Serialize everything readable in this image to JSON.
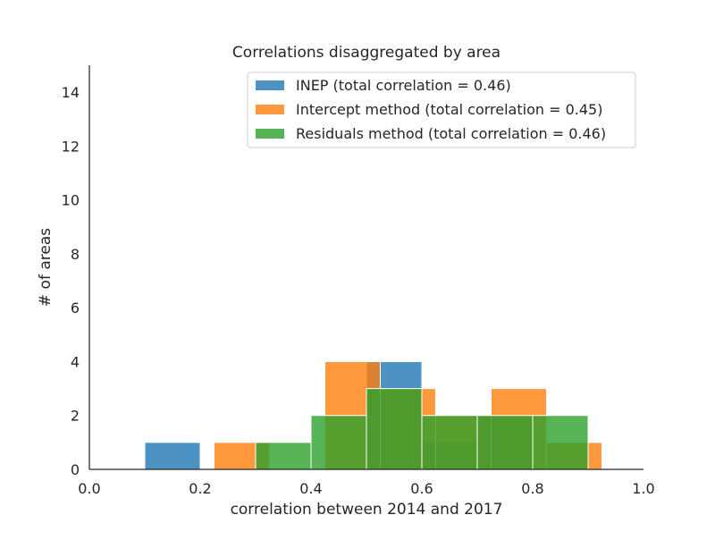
{
  "chart_data": {
    "type": "histogram",
    "title": "Correlations disaggregated by area",
    "xlabel": "correlation between 2014 and 2017",
    "ylabel": "# of areas",
    "xlim": [
      0.0,
      1.0
    ],
    "ylim": [
      0,
      15
    ],
    "x_ticks": [
      "0.0",
      "0.2",
      "0.4",
      "0.6",
      "0.8",
      "1.0"
    ],
    "y_ticks": [
      "0",
      "2",
      "4",
      "6",
      "8",
      "10",
      "12",
      "14"
    ],
    "grid": false,
    "legend_position": "top-right",
    "series": [
      {
        "name": "INEP (total correlation = 0.46)",
        "color": "#1f77b4",
        "bins": [
          {
            "x0": 0.1,
            "x1": 0.2,
            "count": 1
          },
          {
            "x0": 0.5,
            "x1": 0.6,
            "count": 4
          },
          {
            "x0": 0.6,
            "x1": 0.7,
            "count": 1
          },
          {
            "x0": 0.7,
            "x1": 0.8,
            "count": 2
          }
        ]
      },
      {
        "name": "Intercept method (total correlation = 0.45)",
        "color": "#ff7f0e",
        "bins": [
          {
            "x0": 0.225,
            "x1": 0.325,
            "count": 1
          },
          {
            "x0": 0.425,
            "x1": 0.525,
            "count": 4
          },
          {
            "x0": 0.525,
            "x1": 0.625,
            "count": 3
          },
          {
            "x0": 0.625,
            "x1": 0.725,
            "count": 2
          },
          {
            "x0": 0.725,
            "x1": 0.825,
            "count": 3
          },
          {
            "x0": 0.825,
            "x1": 0.925,
            "count": 1
          }
        ]
      },
      {
        "name": "Residuals method (total correlation = 0.46)",
        "color": "#2ca02c",
        "bins": [
          {
            "x0": 0.3,
            "x1": 0.4,
            "count": 1
          },
          {
            "x0": 0.4,
            "x1": 0.5,
            "count": 2
          },
          {
            "x0": 0.5,
            "x1": 0.6,
            "count": 3
          },
          {
            "x0": 0.6,
            "x1": 0.7,
            "count": 2
          },
          {
            "x0": 0.7,
            "x1": 0.8,
            "count": 2
          },
          {
            "x0": 0.8,
            "x1": 0.9,
            "count": 2
          }
        ]
      }
    ]
  }
}
